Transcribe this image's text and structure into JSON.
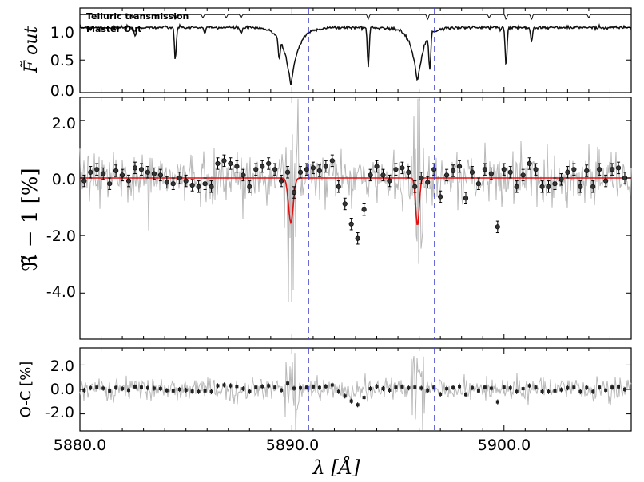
{
  "chart_data": [
    {
      "type": "line",
      "panel": "top",
      "ylabel": "F̃ out",
      "ylim": [
        0.0,
        1.3
      ],
      "yticks": [
        "1.0",
        "0.5",
        "0.0"
      ],
      "xlim": [
        5880,
        5906
      ],
      "series": [
        {
          "name": "Telluric transmission",
          "baseline": 1.2
        },
        {
          "name": "Master Out",
          "baseline": 1.0
        }
      ],
      "na_lines": [
        5889.95,
        5895.92
      ]
    },
    {
      "type": "scatter",
      "panel": "middle",
      "ylabel": "ℜ̃ − 1 [%]",
      "ylim": [
        -5.6,
        2.8
      ],
      "yticks": [
        "2.0",
        "0.0",
        "-2.0",
        "-4.0"
      ],
      "xlim": [
        5880,
        5906
      ],
      "binned_points": {
        "x": [
          5880.2,
          5880.5,
          5880.8,
          5881.1,
          5881.4,
          5881.7,
          5882.0,
          5882.3,
          5882.6,
          5882.9,
          5883.2,
          5883.5,
          5883.8,
          5884.1,
          5884.4,
          5884.7,
          5885.0,
          5885.3,
          5885.6,
          5885.9,
          5886.2,
          5886.5,
          5886.8,
          5887.1,
          5887.4,
          5887.7,
          5888.0,
          5888.3,
          5888.6,
          5888.9,
          5889.2,
          5889.5,
          5889.8,
          5890.1,
          5890.4,
          5890.7,
          5891.0,
          5891.3,
          5891.6,
          5891.9,
          5892.2,
          5892.5,
          5892.8,
          5893.1,
          5893.4,
          5893.7,
          5894.0,
          5894.3,
          5894.6,
          5894.9,
          5895.2,
          5895.5,
          5895.8,
          5896.1,
          5896.4,
          5896.7,
          5897.0,
          5897.3,
          5897.6,
          5897.9,
          5898.2,
          5898.5,
          5898.8,
          5899.1,
          5899.4,
          5899.7,
          5900.0,
          5900.3,
          5900.6,
          5900.9,
          5901.2,
          5901.5,
          5901.8,
          5902.1,
          5902.4,
          5902.7,
          5903.0,
          5903.3,
          5903.6,
          5903.9,
          5904.2,
          5904.5,
          5904.8,
          5905.1,
          5905.4,
          5905.7
        ],
        "y": [
          -0.1,
          0.2,
          0.3,
          0.15,
          -0.2,
          0.25,
          0.1,
          -0.1,
          0.35,
          0.3,
          0.2,
          0.15,
          0.1,
          -0.15,
          -0.2,
          0.0,
          -0.1,
          -0.25,
          -0.3,
          -0.2,
          -0.3,
          0.5,
          0.6,
          0.5,
          0.4,
          0.1,
          -0.3,
          0.3,
          0.4,
          0.5,
          0.3,
          -0.1,
          0.2,
          -0.5,
          0.2,
          0.3,
          0.35,
          0.25,
          0.4,
          0.6,
          -0.3,
          -0.9,
          -1.6,
          -2.1,
          -1.1,
          0.1,
          0.4,
          0.1,
          -0.1,
          0.3,
          0.35,
          0.2,
          -0.3,
          0.0,
          -0.15,
          0.3,
          -0.65,
          0.1,
          0.25,
          0.4,
          -0.7,
          0.2,
          -0.2,
          0.3,
          0.15,
          -1.7,
          0.3,
          0.2,
          -0.3,
          0.1,
          0.5,
          0.3,
          -0.3,
          -0.3,
          -0.2,
          -0.05,
          0.2,
          0.3,
          -0.3,
          0.25,
          -0.3,
          0.3,
          -0.1,
          0.3,
          0.35,
          0.0
        ],
        "err": 0.2
      },
      "model_absorption": [
        {
          "center": 5889.95,
          "depth": -1.55,
          "sigma": 0.16
        },
        {
          "center": 5895.92,
          "depth": -1.65,
          "sigma": 0.12
        }
      ]
    },
    {
      "type": "scatter",
      "panel": "bottom",
      "ylabel": "O-C [%]",
      "ylim": [
        -3.4,
        3.4
      ],
      "yticks": [
        "2.0",
        "0.0",
        "-2.0"
      ],
      "xlim": [
        5880,
        5906
      ],
      "xticks": [
        "5880.0",
        "5890.0",
        "5900.0"
      ],
      "xlabel": "λ [Å]"
    }
  ]
}
